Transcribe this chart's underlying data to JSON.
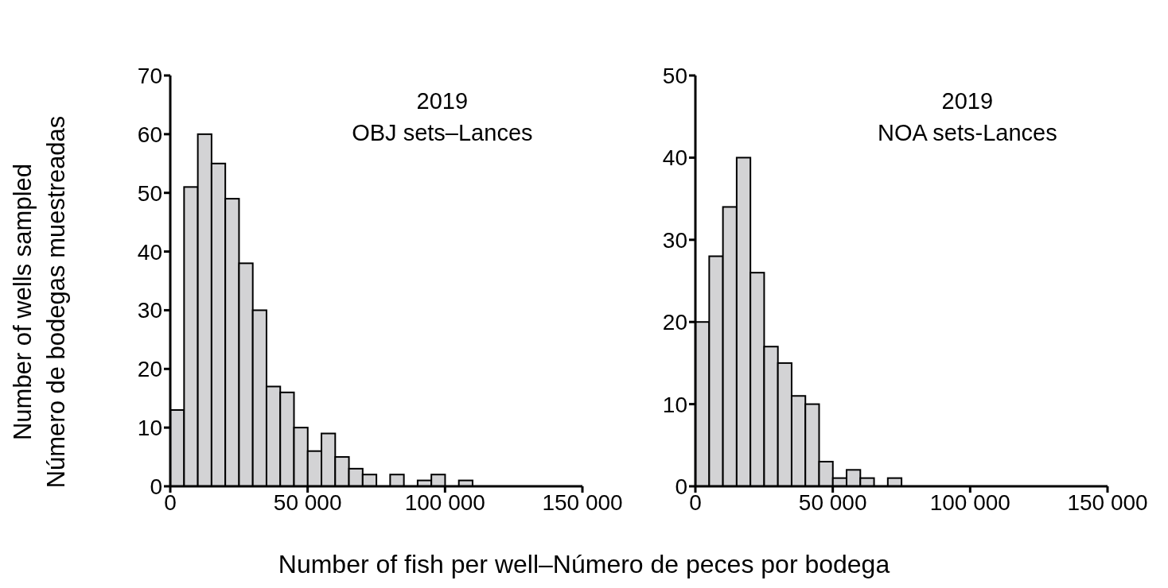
{
  "chart_data": [
    {
      "type": "histogram",
      "xlabel": "Number of fish per well–Número de peces por bodega",
      "ylabel": "Number of wells sampled\nNúmero de bodegas muestreadas",
      "annotations": [
        "2019",
        "OBJ sets–Lances"
      ],
      "bins": [
        0,
        5000,
        10000,
        15000,
        20000,
        25000,
        30000,
        35000,
        40000,
        45000,
        50000,
        55000,
        60000,
        65000,
        70000,
        75000,
        80000,
        85000,
        90000,
        95000,
        100000,
        105000,
        110000
      ],
      "values": [
        13,
        51,
        60,
        55,
        49,
        38,
        30,
        17,
        16,
        10,
        6,
        9,
        5,
        3,
        2,
        0,
        2,
        0,
        1,
        2,
        0,
        1
      ],
      "color": "#d3d3d5",
      "xlim": [
        0,
        150000
      ],
      "xticks": [
        0,
        {
          "value": 50000,
          "label": "50 000"
        },
        {
          "value": 100000,
          "label": "100 000"
        },
        {
          "value": 150000,
          "label": "150 000"
        }
      ],
      "ylim": [
        0,
        70
      ],
      "yticks": [
        0,
        10,
        20,
        30,
        40,
        50,
        60,
        70
      ]
    },
    {
      "type": "histogram",
      "annotations": [
        "2019",
        "NOA sets-Lances"
      ],
      "bins": [
        0,
        5000,
        10000,
        15000,
        20000,
        25000,
        30000,
        35000,
        40000,
        45000,
        50000,
        55000,
        60000,
        65000,
        70000,
        75000
      ],
      "values": [
        20,
        28,
        34,
        40,
        26,
        17,
        15,
        11,
        10,
        3,
        1,
        2,
        1,
        0,
        1
      ],
      "color": "#d3d3d5",
      "xlim": [
        0,
        150000
      ],
      "xticks": [
        0,
        {
          "value": 50000,
          "label": "50 000"
        },
        {
          "value": 100000,
          "label": "100 000"
        },
        {
          "value": 150000,
          "label": "150 000"
        }
      ],
      "ylim": [
        0,
        50
      ],
      "yticks": [
        0,
        10,
        20,
        30,
        40,
        50
      ]
    }
  ]
}
